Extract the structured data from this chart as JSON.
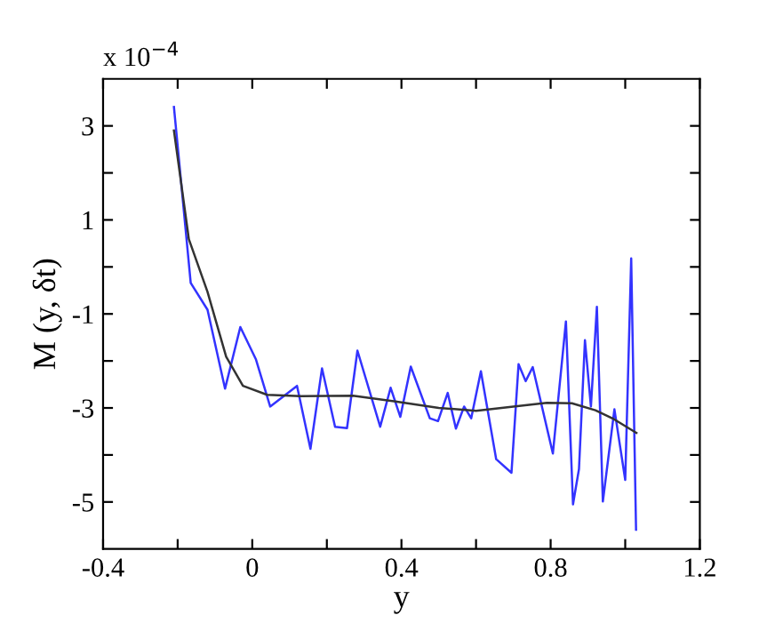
{
  "chart_data": {
    "type": "line",
    "xlabel": "y",
    "ylabel": "M (y, δt)",
    "annotations": [
      "x 10$^{−4}$"
    ],
    "xlim": [
      -0.4,
      1.2
    ],
    "ylim": [
      -6,
      4
    ],
    "xticks": [
      -0.4,
      {
        "value": -0.2,
        "label": null
      },
      0,
      {
        "value": 0.2,
        "label": null
      },
      0.4,
      {
        "value": 0.6,
        "label": null
      },
      0.8,
      {
        "value": 1.0,
        "label": null
      },
      1.2
    ],
    "yticks": [
      -5,
      {
        "value": -4,
        "label": null
      },
      -3,
      {
        "value": -2,
        "label": null
      },
      -1,
      {
        "value": 0,
        "label": null
      },
      1,
      {
        "value": 2,
        "label": null
      },
      3
    ],
    "grid": false,
    "legend": false,
    "marker": "none",
    "line_style": "solid",
    "series": [
      {
        "color": "#3333ff",
        "x": [
          -0.21,
          -0.165,
          -0.12,
          -0.073,
          -0.032,
          0.01,
          0.048,
          0.12,
          0.156,
          0.187,
          0.222,
          0.254,
          0.282,
          0.343,
          0.371,
          0.397,
          0.425,
          0.476,
          0.498,
          0.524,
          0.546,
          0.568,
          0.587,
          0.613,
          0.654,
          0.695,
          0.714,
          0.733,
          0.752,
          0.806,
          0.841,
          0.86,
          0.876,
          0.892,
          0.908,
          0.924,
          0.94,
          0.971,
          1.0,
          1.016,
          1.029
        ],
        "values": [
          3.4,
          -0.34,
          -0.91,
          -2.59,
          -1.28,
          -1.97,
          -2.97,
          -2.53,
          -3.87,
          -2.16,
          -3.4,
          -3.43,
          -1.78,
          -3.4,
          -2.57,
          -3.19,
          -2.12,
          -3.22,
          -3.28,
          -2.68,
          -3.44,
          -2.97,
          -3.22,
          -2.22,
          -4.09,
          -4.38,
          -2.07,
          -2.43,
          -2.13,
          -3.97,
          -1.16,
          -5.05,
          -4.3,
          -1.56,
          -2.97,
          -0.85,
          -4.99,
          -3.03,
          -4.53,
          0.18,
          -5.59
        ]
      },
      {
        "color": "#333333",
        "x": [
          -0.21,
          -0.17,
          -0.12,
          -0.07,
          -0.025,
          0.04,
          0.13,
          0.27,
          0.38,
          0.5,
          0.6,
          0.7,
          0.79,
          0.857,
          0.92,
          0.97,
          1.03
        ],
        "values": [
          2.9,
          0.59,
          -0.53,
          -1.91,
          -2.53,
          -2.72,
          -2.75,
          -2.74,
          -2.86,
          -3.0,
          -3.06,
          -2.97,
          -2.89,
          -2.9,
          -3.05,
          -3.24,
          -3.53
        ]
      }
    ]
  }
}
